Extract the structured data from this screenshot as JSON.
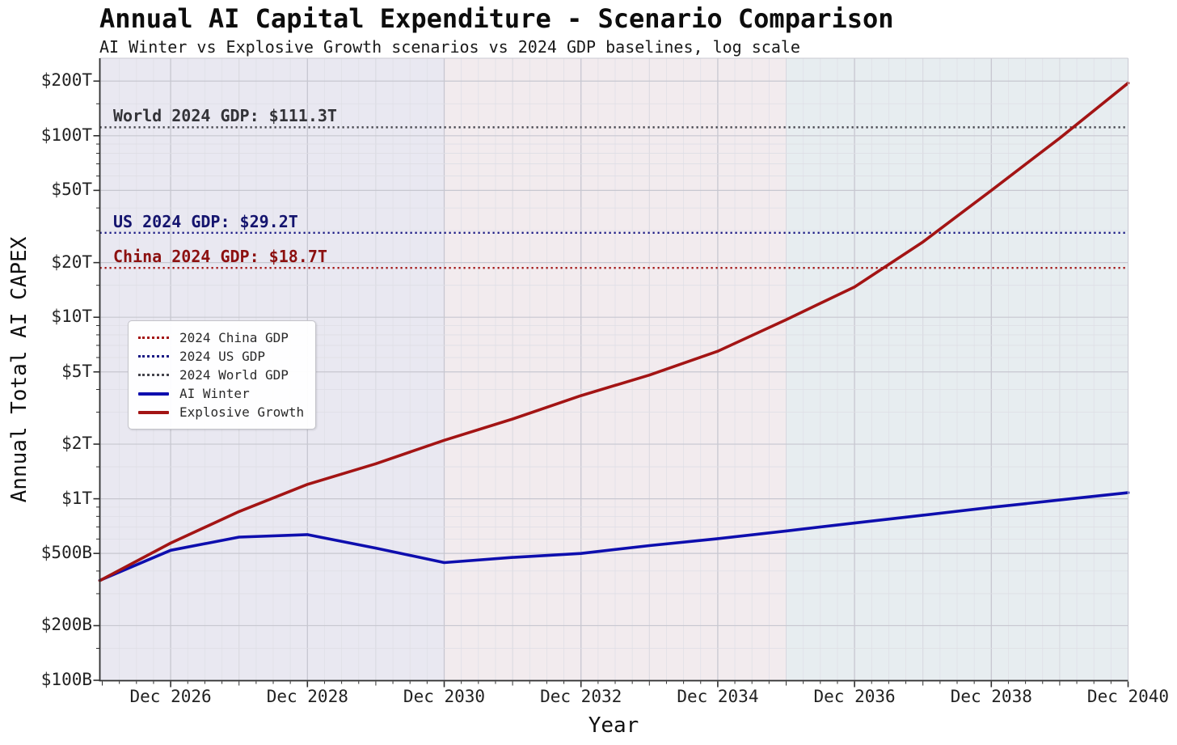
{
  "chart_data": {
    "type": "line",
    "title": "Annual AI Capital Expenditure - Scenario Comparison",
    "subtitle": "AI Winter vs Explosive Growth scenarios vs 2024 GDP baselines, log scale",
    "xlabel": "Year",
    "ylabel": "Annual Total AI CAPEX",
    "y_scale": "log",
    "y_range_B": [
      100,
      200000
    ],
    "x_range": [
      "Nov 2025",
      "Dec 2040"
    ],
    "grid": true,
    "y_ticks": [
      {
        "value_B": 100,
        "label": "$100B"
      },
      {
        "value_B": 200,
        "label": "$200B"
      },
      {
        "value_B": 500,
        "label": "$500B"
      },
      {
        "value_B": 1000,
        "label": "$1T"
      },
      {
        "value_B": 2000,
        "label": "$2T"
      },
      {
        "value_B": 5000,
        "label": "$5T"
      },
      {
        "value_B": 10000,
        "label": "$10T"
      },
      {
        "value_B": 20000,
        "label": "$20T"
      },
      {
        "value_B": 50000,
        "label": "$50T"
      },
      {
        "value_B": 100000,
        "label": "$100T"
      },
      {
        "value_B": 200000,
        "label": "$200T"
      }
    ],
    "x_ticks": [
      {
        "year": 2026,
        "label": "Dec 2026"
      },
      {
        "year": 2028,
        "label": "Dec 2028"
      },
      {
        "year": 2030,
        "label": "Dec 2030"
      },
      {
        "year": 2032,
        "label": "Dec 2032"
      },
      {
        "year": 2034,
        "label": "Dec 2034"
      },
      {
        "year": 2036,
        "label": "Dec 2036"
      },
      {
        "year": 2038,
        "label": "Dec 2038"
      },
      {
        "year": 2040,
        "label": "Dec 2040"
      }
    ],
    "background_bands": [
      {
        "name": "through-2030",
        "from_year": null,
        "to_year": 2030,
        "color": "#e9e8f1"
      },
      {
        "name": "2031-2035",
        "from_year": 2030,
        "to_year": 2035,
        "color": "#f2ebee"
      },
      {
        "name": "2036-2040",
        "from_year": 2035,
        "to_year": null,
        "color": "#e7edf0"
      }
    ],
    "baselines": [
      {
        "id": "world",
        "annotation": "World 2024 GDP: $111.3T",
        "value_B": 111300,
        "line_color": "#44444c",
        "text_color": "#333338"
      },
      {
        "id": "us",
        "annotation": "US 2024 GDP: $29.2T",
        "value_B": 29200,
        "line_color": "#191984",
        "text_color": "#14146e"
      },
      {
        "id": "china",
        "annotation": "China 2024 GDP: $18.7T",
        "value_B": 18700,
        "line_color": "#a31414",
        "text_color": "#8c1010"
      }
    ],
    "series": [
      {
        "name": "AI Winter",
        "color": "#0e0eae",
        "x_years_dec": [
          2025,
          2026,
          2027,
          2028,
          2029,
          2030,
          2031,
          2032,
          2033,
          2034,
          2035,
          2036,
          2037,
          2038,
          2039,
          2040
        ],
        "values_B": [
          360,
          520,
          615,
          635,
          535,
          445,
          475,
          500,
          552,
          603,
          665,
          735,
          812,
          897,
          985,
          1080
        ]
      },
      {
        "name": "Explosive Growth",
        "color": "#a31414",
        "x_years_dec": [
          2025,
          2026,
          2027,
          2028,
          2029,
          2030,
          2031,
          2032,
          2033,
          2034,
          2035,
          2036,
          2037,
          2038,
          2039,
          2040
        ],
        "values_B": [
          360,
          570,
          850,
          1200,
          1560,
          2100,
          2750,
          3700,
          4800,
          6500,
          9700,
          14700,
          26000,
          50000,
          97000,
          195000
        ]
      }
    ],
    "legend": {
      "items": [
        {
          "label": "2024 China GDP",
          "style": "dotted",
          "color": "#a31414"
        },
        {
          "label": "2024 US GDP",
          "style": "dotted",
          "color": "#191984"
        },
        {
          "label": "2024 World GDP",
          "style": "dotted",
          "color": "#44444c"
        },
        {
          "label": "AI Winter",
          "style": "solid",
          "color": "#0e0eae"
        },
        {
          "label": "Explosive Growth",
          "style": "solid",
          "color": "#a31414"
        }
      ]
    }
  }
}
